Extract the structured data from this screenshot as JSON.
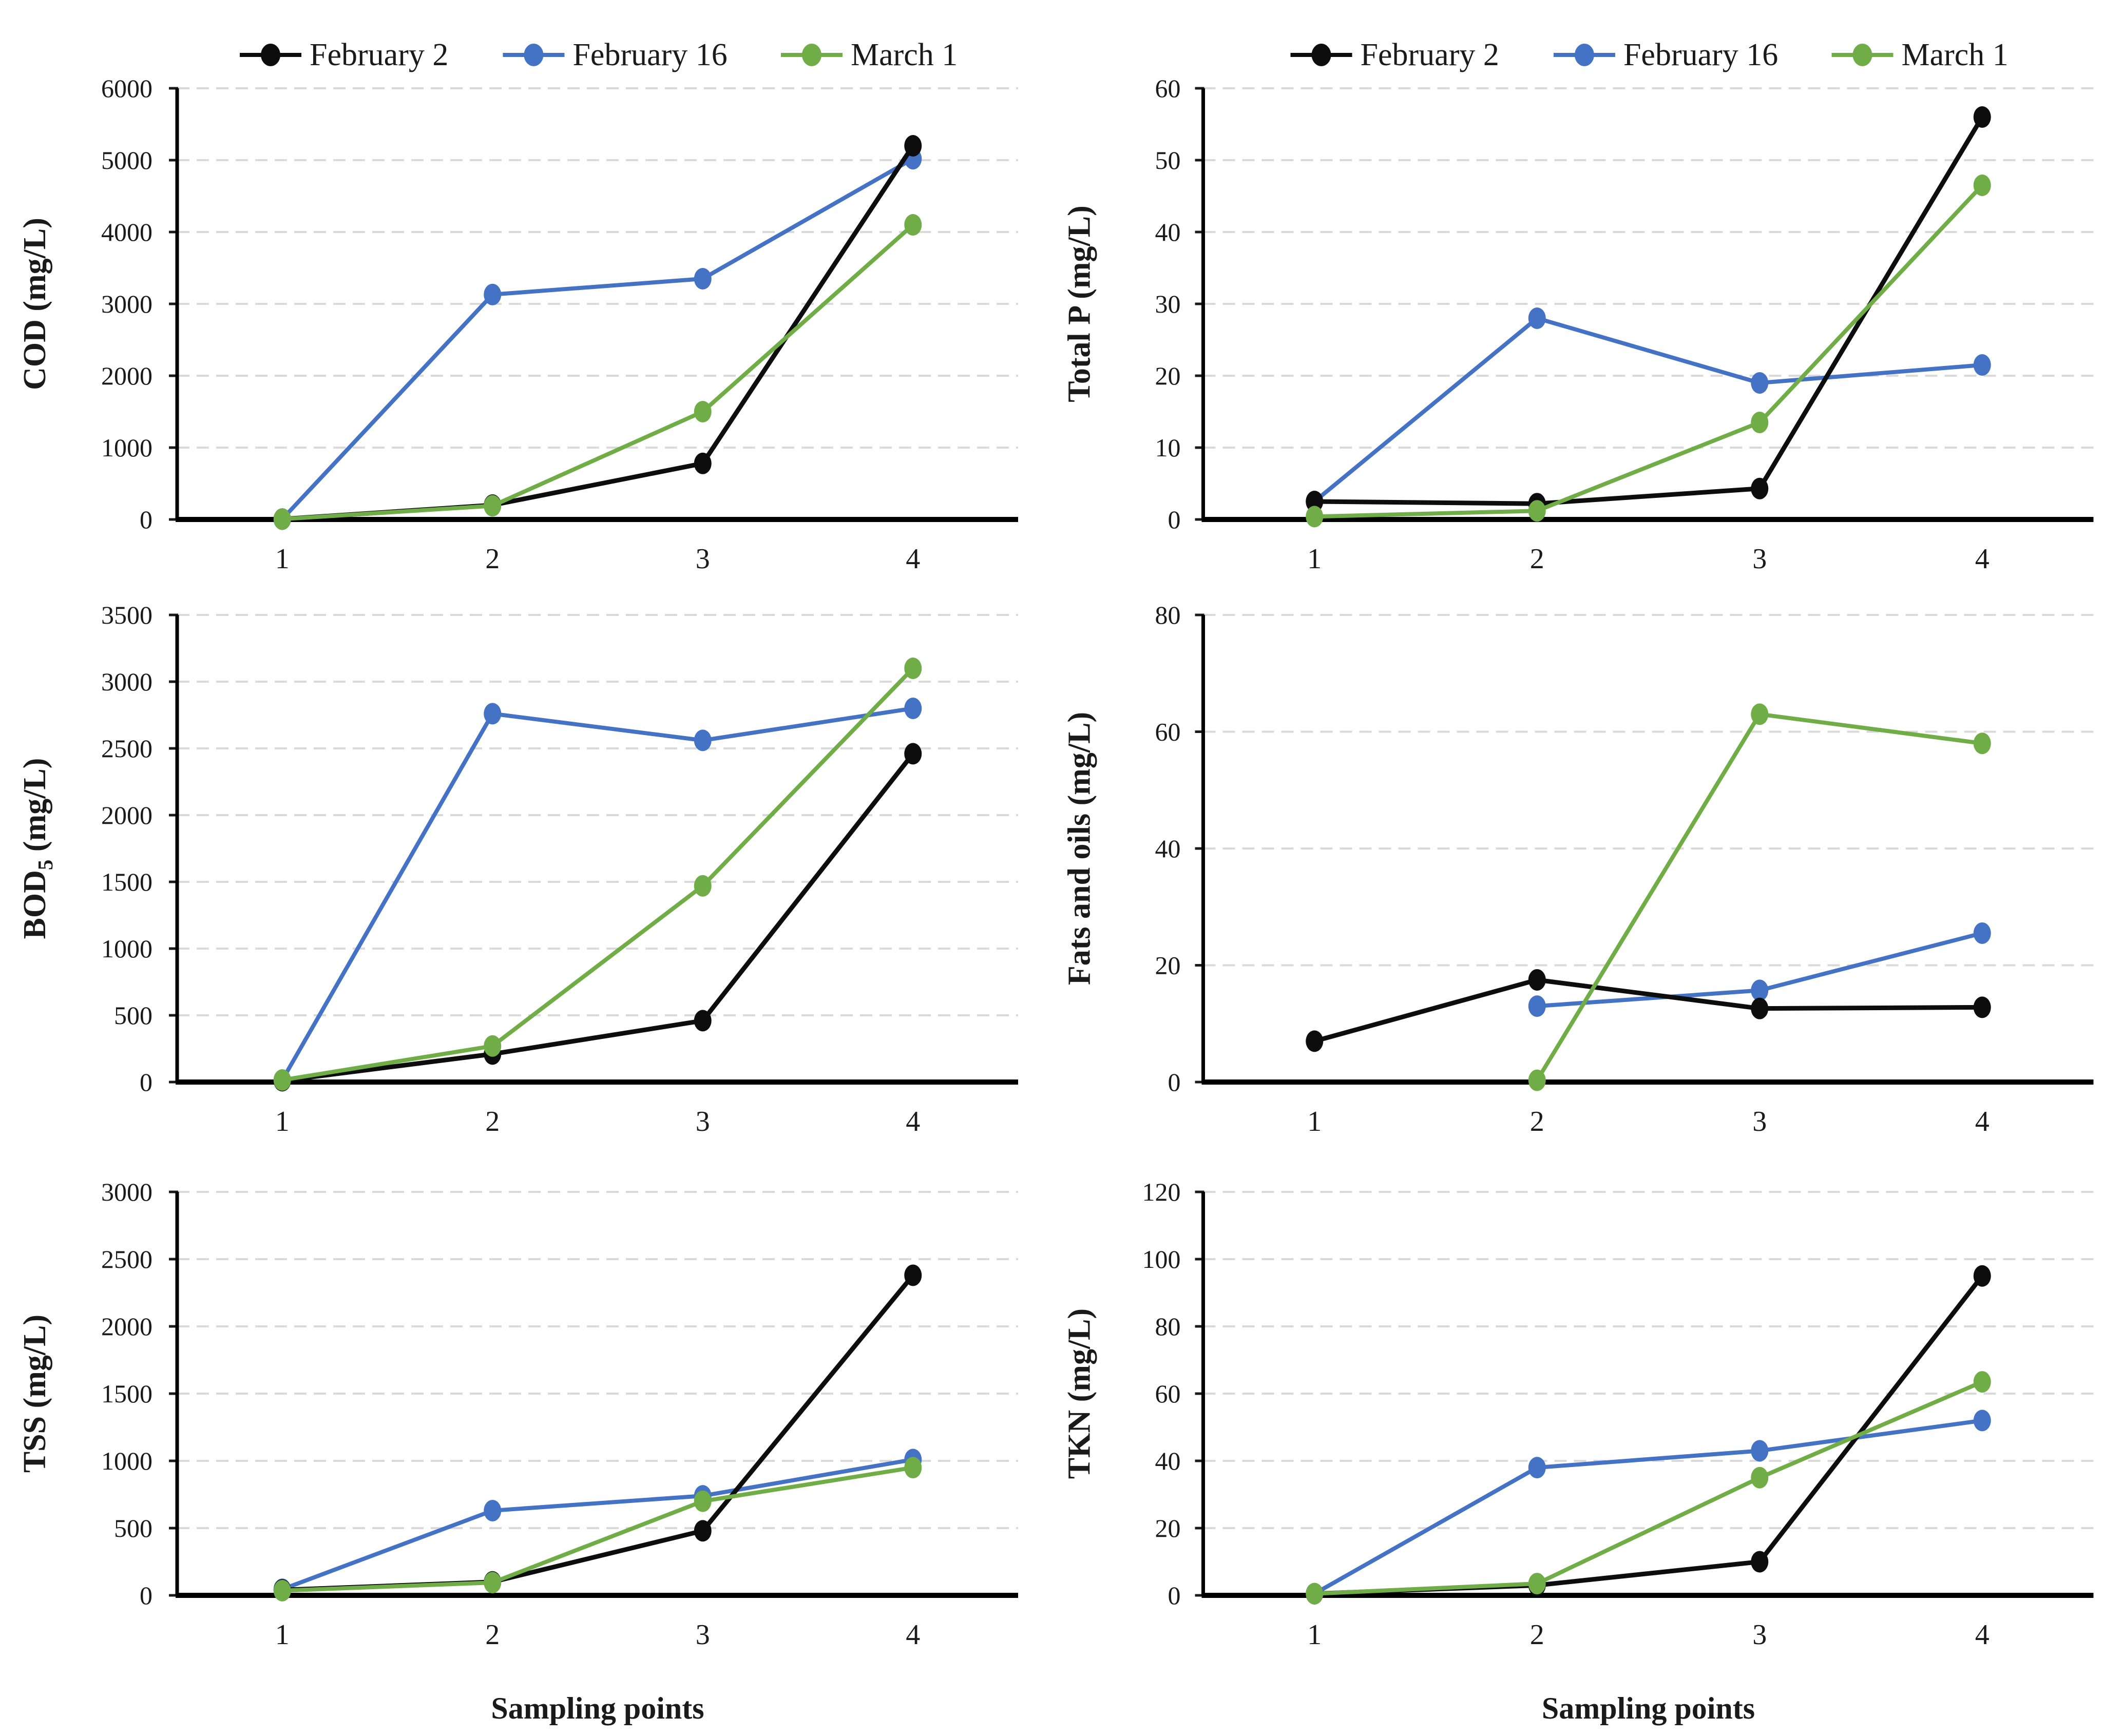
{
  "figure": {
    "background": "#ffffff",
    "x_axis_title": "Sampling points",
    "gridline_color": "#d9d9d9",
    "axis_color": "#000000",
    "legend": {
      "items": [
        {
          "label": "February 2",
          "color": "#0d0d0d"
        },
        {
          "label": "February 16",
          "color": "#4472c4"
        },
        {
          "label": "March 1",
          "color": "#70ad47"
        }
      ]
    }
  },
  "chart_data": [
    {
      "id": "cod",
      "type": "line",
      "ylabel": "COD (mg/L)",
      "xlabel": "",
      "legend_visible": true,
      "grid": "dashed-horizontal",
      "categories": [
        "1",
        "2",
        "3",
        "4"
      ],
      "ylim": [
        0,
        6000
      ],
      "ystep": 1000,
      "series": [
        {
          "name": "February 2",
          "color": "#0d0d0d",
          "values": [
            5,
            200,
            780,
            5200
          ]
        },
        {
          "name": "February 16",
          "color": "#4472c4",
          "values": [
            5,
            3130,
            3350,
            5020
          ]
        },
        {
          "name": "March 1",
          "color": "#70ad47",
          "values": [
            5,
            190,
            1500,
            4100
          ]
        }
      ]
    },
    {
      "id": "total-p",
      "type": "line",
      "ylabel": "Total P (mg/L)",
      "xlabel": "",
      "legend_visible": true,
      "grid": "dashed-horizontal",
      "categories": [
        "1",
        "2",
        "3",
        "4"
      ],
      "ylim": [
        0,
        60
      ],
      "ystep": 10,
      "series": [
        {
          "name": "February 2",
          "color": "#0d0d0d",
          "values": [
            2.5,
            2.2,
            4.3,
            56
          ]
        },
        {
          "name": "February 16",
          "color": "#4472c4",
          "values": [
            2.5,
            28,
            19,
            21.5
          ]
        },
        {
          "name": "March 1",
          "color": "#70ad47",
          "values": [
            0.4,
            1.2,
            13.5,
            46.5
          ]
        }
      ]
    },
    {
      "id": "bod5",
      "type": "line",
      "ylabel": "BOD_5_ (mg/L)",
      "xlabel": "",
      "legend_visible": false,
      "grid": "dashed-horizontal",
      "categories": [
        "1",
        "2",
        "3",
        "4"
      ],
      "ylim": [
        0,
        3500
      ],
      "ystep": 500,
      "series": [
        {
          "name": "February 2",
          "color": "#0d0d0d",
          "values": [
            10,
            210,
            460,
            2460
          ]
        },
        {
          "name": "February 16",
          "color": "#4472c4",
          "values": [
            15,
            2760,
            2560,
            2800
          ]
        },
        {
          "name": "March 1",
          "color": "#70ad47",
          "values": [
            15,
            270,
            1470,
            3100
          ]
        }
      ]
    },
    {
      "id": "fats-oils",
      "type": "line",
      "ylabel": "Fats and oils (mg/L)",
      "xlabel": "",
      "legend_visible": false,
      "grid": "dashed-horizontal",
      "categories": [
        "1",
        "2",
        "3",
        "4"
      ],
      "ylim": [
        0,
        80
      ],
      "ystep": 20,
      "series": [
        {
          "name": "February 2",
          "color": "#0d0d0d",
          "values": [
            7,
            17.5,
            12.6,
            12.8
          ]
        },
        {
          "name": "February 16",
          "color": "#4472c4",
          "values": [
            null,
            13,
            15.7,
            25.5
          ]
        },
        {
          "name": "March 1",
          "color": "#70ad47",
          "values": [
            null,
            0.3,
            63,
            58
          ]
        }
      ]
    },
    {
      "id": "tss",
      "type": "line",
      "ylabel": "TSS (mg/L)",
      "xlabel": "Sampling points",
      "legend_visible": false,
      "grid": "dashed-horizontal",
      "categories": [
        "1",
        "2",
        "3",
        "4"
      ],
      "ylim": [
        0,
        3000
      ],
      "ystep": 500,
      "series": [
        {
          "name": "February 2",
          "color": "#0d0d0d",
          "values": [
            40,
            100,
            480,
            2380
          ]
        },
        {
          "name": "February 16",
          "color": "#4472c4",
          "values": [
            45,
            630,
            740,
            1010
          ]
        },
        {
          "name": "March 1",
          "color": "#70ad47",
          "values": [
            35,
            95,
            700,
            950
          ]
        }
      ]
    },
    {
      "id": "tkn",
      "type": "line",
      "ylabel": "TKN (mg/L)",
      "xlabel": "Sampling points",
      "legend_visible": false,
      "grid": "dashed-horizontal",
      "categories": [
        "1",
        "2",
        "3",
        "4"
      ],
      "ylim": [
        0,
        120
      ],
      "ystep": 20,
      "series": [
        {
          "name": "February 2",
          "color": "#0d0d0d",
          "values": [
            0.5,
            3,
            10,
            95
          ]
        },
        {
          "name": "February 16",
          "color": "#4472c4",
          "values": [
            0.5,
            38,
            43,
            52
          ]
        },
        {
          "name": "March 1",
          "color": "#70ad47",
          "values": [
            0.5,
            3.5,
            35,
            63.5
          ]
        }
      ]
    }
  ]
}
